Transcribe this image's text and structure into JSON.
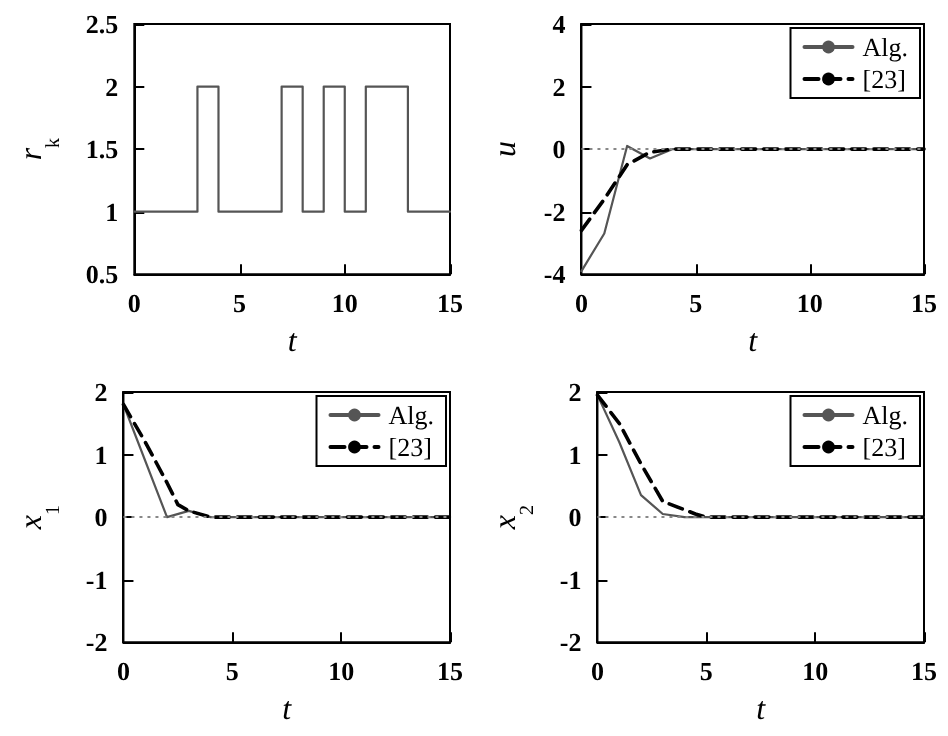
{
  "chart_data": [
    {
      "type": "step",
      "xlabel": "t",
      "ylabel": "r$_{k}$",
      "xlim": [
        0,
        15
      ],
      "xticks": [
        0,
        5,
        10,
        15
      ],
      "ylim": [
        0.5,
        2.5
      ],
      "yticks": [
        0.5,
        1,
        1.5,
        2,
        2.5
      ],
      "series": [
        {
          "color": "#555555",
          "x": [
            0,
            3,
            4,
            7,
            8,
            9,
            10,
            11,
            13,
            15
          ],
          "values": [
            1,
            2,
            1,
            2,
            1,
            2,
            1,
            2,
            1,
            1
          ]
        }
      ]
    },
    {
      "type": "line",
      "xlabel": "t",
      "ylabel": "u",
      "xlim": [
        0,
        15
      ],
      "xticks": [
        0,
        5,
        10,
        15
      ],
      "ylim": [
        -4,
        4
      ],
      "yticks": [
        -4,
        -2,
        0,
        2,
        4
      ],
      "legend": "top right",
      "ref_lines": [
        {
          "axis": "y",
          "value": 0,
          "line_style": "dotted",
          "color": "#888888"
        }
      ],
      "series": [
        {
          "name": "Alg.",
          "color": "#555555",
          "line_style": "solid",
          "x": [
            0,
            1,
            2,
            3,
            4,
            15
          ],
          "values": [
            -3.9,
            -2.7,
            0.1,
            -0.3,
            0,
            0
          ]
        },
        {
          "name": "[23]",
          "color": "#000000",
          "line_style": "dashed",
          "x": [
            0,
            1,
            2,
            3,
            4,
            15
          ],
          "values": [
            -2.6,
            -1.6,
            -0.5,
            -0.1,
            0,
            0
          ]
        }
      ]
    },
    {
      "type": "line",
      "xlabel": "t",
      "ylabel": "x$_{1}$",
      "xlim": [
        0,
        15
      ],
      "xticks": [
        0,
        5,
        10,
        15
      ],
      "ylim": [
        -2,
        2
      ],
      "yticks": [
        -2,
        -1,
        0,
        1,
        2
      ],
      "legend": "top right",
      "ref_lines": [
        {
          "axis": "y",
          "value": 0,
          "line_style": "dotted",
          "color": "#888888"
        }
      ],
      "series": [
        {
          "name": "Alg.",
          "color": "#555555",
          "line_style": "solid",
          "x": [
            0,
            2,
            3,
            4,
            15
          ],
          "values": [
            1.8,
            0,
            0.1,
            0,
            0
          ]
        },
        {
          "name": "[23]",
          "color": "#000000",
          "line_style": "dashed",
          "x": [
            0,
            1,
            2,
            2.5,
            3,
            4,
            15
          ],
          "values": [
            1.8,
            1.2,
            0.55,
            0.2,
            0.1,
            0,
            0
          ]
        }
      ]
    },
    {
      "type": "line",
      "xlabel": "t",
      "ylabel": "x$_{2}$",
      "xlim": [
        0,
        15
      ],
      "xticks": [
        0,
        5,
        10,
        15
      ],
      "ylim": [
        -2,
        2
      ],
      "yticks": [
        -2,
        -1,
        0,
        1,
        2
      ],
      "legend": "top right",
      "ref_lines": [
        {
          "axis": "y",
          "value": 0,
          "line_style": "dotted",
          "color": "#888888"
        }
      ],
      "series": [
        {
          "name": "Alg.",
          "color": "#555555",
          "line_style": "solid",
          "x": [
            0,
            1,
            2,
            3,
            4,
            15
          ],
          "values": [
            1.95,
            1.2,
            0.35,
            0.05,
            0,
            0
          ]
        },
        {
          "name": "[23]",
          "color": "#000000",
          "line_style": "dashed",
          "x": [
            0,
            1,
            2,
            3,
            4.5,
            5,
            15
          ],
          "values": [
            1.95,
            1.5,
            0.85,
            0.25,
            0.05,
            0,
            0
          ]
        }
      ]
    }
  ]
}
